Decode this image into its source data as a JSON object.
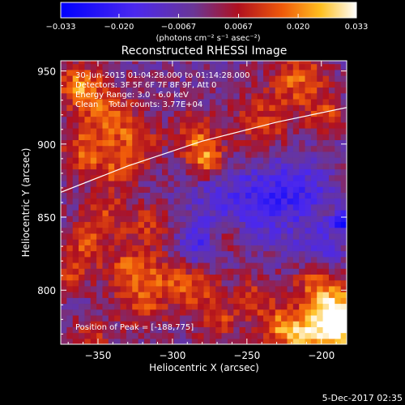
{
  "chart_data": {
    "type": "heatmap",
    "title": "Reconstructed RHESSI Image",
    "xlabel": "Heliocentric X (arcsec)",
    "ylabel": "Heliocentric Y (arcsec)",
    "xlim": [
      -375,
      -183
    ],
    "ylim": [
      763,
      957
    ],
    "x_ticks": [
      -350,
      -300,
      -250,
      -200
    ],
    "x_tick_labels": [
      "−350",
      "−300",
      "−250",
      "−200"
    ],
    "y_ticks": [
      800,
      850,
      900,
      950
    ],
    "y_tick_labels": [
      "800",
      "850",
      "900",
      "950"
    ],
    "colorbar": {
      "min": -0.033,
      "max": 0.033,
      "ticks": [
        -0.033,
        -0.02,
        -0.0067,
        0.0067,
        0.02,
        0.033
      ],
      "tick_labels": [
        "−0.033",
        "−0.020",
        "−0.0067",
        "0.0067",
        "0.020",
        "0.033"
      ],
      "units": "(photons cm⁻² s⁻¹ asec⁻²)"
    },
    "annotations": [
      "30-Jun-2015 01:04:28.000 to 01:14:28.000",
      "Detectors: 3F 5F 6F 7F 8F 9F, Att 0",
      "Energy Range: 3.0 - 6.0 keV",
      "Clean    Total counts: 3.77E+04"
    ],
    "peak_label": "Position of Peak = [-188,775]",
    "peak_position": [
      -188,
      775
    ],
    "limb_curve_points": [
      [
        -375,
        867
      ],
      [
        -330,
        885
      ],
      [
        -280,
        902
      ],
      [
        -230,
        915
      ],
      [
        -183,
        925
      ]
    ],
    "features": [
      {
        "x": -362,
        "y": 940,
        "v": 0.022,
        "r": 10
      },
      {
        "x": -345,
        "y": 920,
        "v": 0.016,
        "r": 14
      },
      {
        "x": -325,
        "y": 900,
        "v": 0.014,
        "r": 12
      },
      {
        "x": -360,
        "y": 895,
        "v": 0.016,
        "r": 10
      },
      {
        "x": -340,
        "y": 880,
        "v": 0.012,
        "r": 11
      },
      {
        "x": -278,
        "y": 890,
        "v": 0.022,
        "r": 9
      },
      {
        "x": -285,
        "y": 908,
        "v": 0.015,
        "r": 10
      },
      {
        "x": -215,
        "y": 945,
        "v": 0.018,
        "r": 13
      },
      {
        "x": -240,
        "y": 915,
        "v": 0.014,
        "r": 14
      },
      {
        "x": -198,
        "y": 920,
        "v": 0.014,
        "r": 9
      },
      {
        "x": -345,
        "y": 850,
        "v": 0.013,
        "r": 11
      },
      {
        "x": -315,
        "y": 845,
        "v": 0.012,
        "r": 10
      },
      {
        "x": -360,
        "y": 830,
        "v": 0.014,
        "r": 10
      },
      {
        "x": -370,
        "y": 810,
        "v": 0.012,
        "r": 9
      },
      {
        "x": -330,
        "y": 815,
        "v": 0.016,
        "r": 12
      },
      {
        "x": -300,
        "y": 810,
        "v": 0.014,
        "r": 12
      },
      {
        "x": -320,
        "y": 790,
        "v": 0.013,
        "r": 12
      },
      {
        "x": -282,
        "y": 800,
        "v": 0.012,
        "r": 10
      },
      {
        "x": -270,
        "y": 780,
        "v": 0.013,
        "r": 10
      },
      {
        "x": -245,
        "y": 795,
        "v": 0.012,
        "r": 11
      },
      {
        "x": -205,
        "y": 805,
        "v": 0.015,
        "r": 10
      },
      {
        "x": -190,
        "y": 790,
        "v": 0.02,
        "r": 12
      },
      {
        "x": -188,
        "y": 775,
        "v": 0.033,
        "r": 11
      },
      {
        "x": -212,
        "y": 770,
        "v": 0.024,
        "r": 11
      },
      {
        "x": -230,
        "y": 775,
        "v": 0.015,
        "r": 10
      },
      {
        "x": -262,
        "y": 838,
        "v": 0.01,
        "r": 9
      },
      {
        "x": -355,
        "y": 768,
        "v": 0.012,
        "r": 10
      },
      {
        "x": -270,
        "y": 860,
        "v": -0.008,
        "r": 16
      },
      {
        "x": -240,
        "y": 860,
        "v": -0.012,
        "r": 18
      },
      {
        "x": -285,
        "y": 830,
        "v": -0.014,
        "r": 10
      },
      {
        "x": -215,
        "y": 870,
        "v": -0.012,
        "r": 16
      },
      {
        "x": -186,
        "y": 848,
        "v": -0.028,
        "r": 4
      },
      {
        "x": -200,
        "y": 830,
        "v": -0.01,
        "r": 12
      }
    ]
  },
  "footer": {
    "date": "5-Dec-2017 02:35"
  }
}
